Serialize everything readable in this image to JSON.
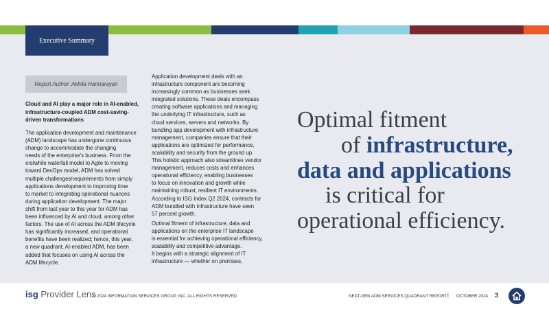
{
  "header": {
    "section": "Executive Summary"
  },
  "left": {
    "author": "Report Author: Akhila Harinarayan",
    "heading": [
      "Cloud and AI play a major role in AI-enabled,",
      "infrastructure-coupled ADM cost-saving-",
      "driven transformations"
    ],
    "body": [
      "The application development and maintenance",
      "(ADM) landscape has undergone continuous",
      "change to accommodate the changing",
      "needs of the enterprise's business. From the",
      "erstwhile waterfall model to Agile to moving",
      "toward DevOps model, ADM has solved",
      "multiple challenges/requirements from simply",
      "applications development to improving time",
      "to market to integrating operational nuances",
      "during application development. The major",
      "shift from last year to this year for ADM has",
      "been influenced by AI and cloud, among other",
      "factors. The use of AI across the ADM lifecycle",
      "has significantly increased, and operational",
      "benefits have been realized; hence, this year,",
      "a new quadrant, AI-enabled ADM, has been",
      "added that focuses on using AI across the",
      "ADM lifecycle."
    ]
  },
  "middle": {
    "paragraphs": [
      [
        "Application development deals with an",
        "infrastructure component are becoming",
        "increasingly common as businesses seek",
        "integrated solutions. These deals encompass",
        "creating software applications and managing",
        "the underlying IT infrastructure, such as",
        "cloud services, servers and networks. By",
        "bundling app development with infrastructure",
        "management, companies ensure that their",
        "applications are optimized for performance,",
        "scalability and security from the ground up.",
        "This holistic approach also streamlines vendor",
        "management, reduces costs and enhances",
        "operational efficiency, enabling businesses",
        "to focus on innovation and growth while",
        "maintaining robust, resilient IT environments.",
        "According to ISG Index Q2 2024, contracts for",
        "ADM bundled with infrastructure have seen",
        "57 percent growth."
      ],
      [
        "Optimal fitment of infrastructure, data and",
        "applications on the enterprise IT landscape",
        "is essential for achieving operational efficiency,",
        "scalability and competitive advantage.",
        "It begins with a strategic alignment of IT",
        "infrastructure — whether on premises,"
      ]
    ]
  },
  "quote": {
    "lines": [
      [
        "Optimal fitment"
      ],
      [
        "of ",
        "infrastructure,"
      ],
      [
        "data and applications"
      ],
      [
        "is critical for"
      ],
      [
        "operational efficiency."
      ]
    ]
  },
  "footer": {
    "logo_brand": "isg",
    "logo_product": "Provider Lens",
    "copyright": "© 2024 INFORMATION SERVICES GROUP, INC. ALL RIGHTS RESERVED.",
    "report": "NEXT-GEN ADM SERVICES QUADRANT REPORT",
    "separator": "|",
    "date": "OCTOBER 2024",
    "page": "3"
  }
}
